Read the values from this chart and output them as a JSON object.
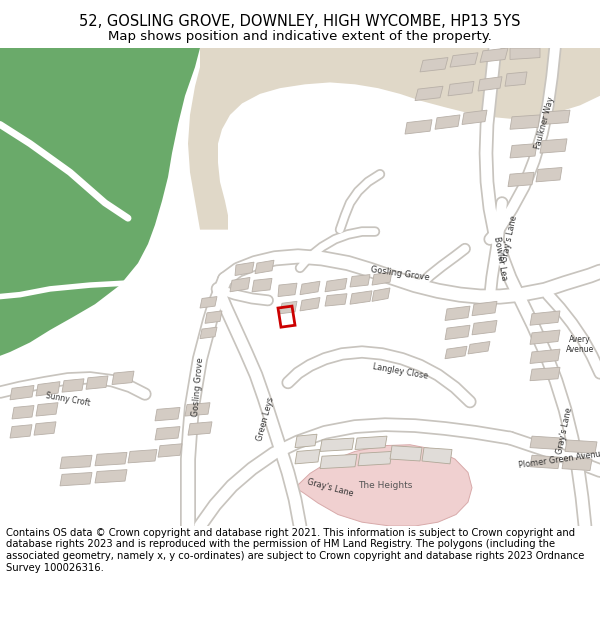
{
  "title_line1": "52, GOSLING GROVE, DOWNLEY, HIGH WYCOMBE, HP13 5YS",
  "title_line2": "Map shows position and indicative extent of the property.",
  "footer": "Contains OS data © Crown copyright and database right 2021. This information is subject to Crown copyright and database rights 2023 and is reproduced with the permission of HM Land Registry. The polygons (including the associated geometry, namely x, y co-ordinates) are subject to Crown copyright and database rights 2023 Ordnance Survey 100026316.",
  "bg_color": "#f0ede8",
  "road_color": "#ffffff",
  "road_outline": "#c8c4be",
  "building_color": "#d4ccc4",
  "building_outline": "#b8b0a8",
  "green_color": "#6aaa6a",
  "tan_color": "#e0d8c8",
  "pink_color": "#f0d0d0",
  "highlight_color": "#cc0000",
  "text_color": "#000000",
  "road_label_color": "#333333",
  "title_fontsize": 10.5,
  "subtitle_fontsize": 9.5,
  "footer_fontsize": 7.2,
  "label_fontsize": 6.0
}
